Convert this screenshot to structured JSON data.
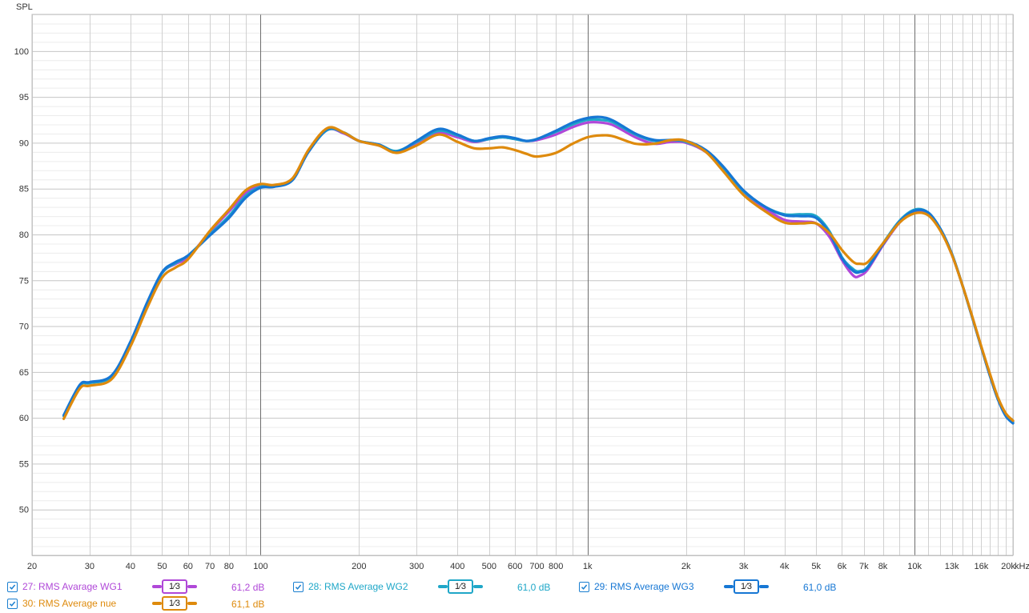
{
  "chart_data": {
    "type": "line",
    "ylabel": "SPL",
    "xunit": "kHz",
    "xscale": "log",
    "xlim": [
      20,
      20000
    ],
    "ylim": [
      45,
      104
    ],
    "grid": true,
    "yticks": [
      50,
      55,
      60,
      65,
      70,
      75,
      80,
      85,
      90,
      95,
      100
    ],
    "xticks": [
      {
        "v": 20,
        "label": "20"
      },
      {
        "v": 30,
        "label": "30"
      },
      {
        "v": 40,
        "label": "40"
      },
      {
        "v": 50,
        "label": "50"
      },
      {
        "v": 60,
        "label": "60"
      },
      {
        "v": 70,
        "label": "70"
      },
      {
        "v": 80,
        "label": "80"
      },
      {
        "v": 100,
        "label": "100"
      },
      {
        "v": 200,
        "label": "200"
      },
      {
        "v": 300,
        "label": "300"
      },
      {
        "v": 400,
        "label": "400"
      },
      {
        "v": 500,
        "label": "500"
      },
      {
        "v": 600,
        "label": "600"
      },
      {
        "v": 700,
        "label": "700"
      },
      {
        "v": 800,
        "label": "800"
      },
      {
        "v": 1000,
        "label": "1k"
      },
      {
        "v": 2000,
        "label": "2k"
      },
      {
        "v": 3000,
        "label": "3k"
      },
      {
        "v": 4000,
        "label": "4k"
      },
      {
        "v": 5000,
        "label": "5k"
      },
      {
        "v": 6000,
        "label": "6k"
      },
      {
        "v": 7000,
        "label": "7k"
      },
      {
        "v": 8000,
        "label": "8k"
      },
      {
        "v": 10000,
        "label": "10k"
      },
      {
        "v": 13000,
        "label": "13k"
      },
      {
        "v": 16000,
        "label": "16k"
      },
      {
        "v": 20000,
        "label": "20k"
      }
    ],
    "x": [
      25,
      28,
      30,
      35,
      40,
      45,
      50,
      55,
      60,
      70,
      80,
      90,
      100,
      110,
      125,
      140,
      160,
      180,
      200,
      230,
      260,
      300,
      350,
      400,
      450,
      500,
      550,
      600,
      650,
      700,
      800,
      900,
      1000,
      1100,
      1200,
      1400,
      1600,
      1800,
      2000,
      2300,
      2600,
      3000,
      3500,
      4000,
      4500,
      5000,
      5500,
      6000,
      6500,
      6800,
      7200,
      8000,
      9000,
      10000,
      11000,
      12000,
      13000,
      14000,
      15000,
      16000,
      17000,
      18000,
      19000,
      20000
    ],
    "series": [
      {
        "name": "27: RMS Avarage WG1",
        "color": "#b048d8",
        "values": [
          60.2,
          63.5,
          63.8,
          64.5,
          68.2,
          72.5,
          75.8,
          76.8,
          77.5,
          80.3,
          82.5,
          84.5,
          85.3,
          85.3,
          86.0,
          89.0,
          91.4,
          91.0,
          90.2,
          89.7,
          89.0,
          90.0,
          91.1,
          90.6,
          90.1,
          90.4,
          90.6,
          90.4,
          90.2,
          90.3,
          90.9,
          91.7,
          92.2,
          92.2,
          91.9,
          90.6,
          89.9,
          90.1,
          90.0,
          89.0,
          87.1,
          84.5,
          82.8,
          81.6,
          81.4,
          81.2,
          79.7,
          77.2,
          75.5,
          75.5,
          76.2,
          78.8,
          81.3,
          82.5,
          82.2,
          80.5,
          77.8,
          74.5,
          71.0,
          67.7,
          64.6,
          62.0,
          60.3,
          59.6
        ]
      },
      {
        "name": "28: RMS Average WG2",
        "color": "#1fa7c8",
        "values": [
          60.2,
          63.5,
          63.8,
          64.5,
          68.2,
          72.5,
          75.8,
          76.9,
          77.7,
          80.0,
          82.0,
          84.2,
          85.2,
          85.3,
          86.0,
          89.0,
          91.4,
          91.1,
          90.2,
          89.8,
          89.1,
          90.1,
          91.3,
          90.8,
          90.2,
          90.4,
          90.6,
          90.4,
          90.2,
          90.4,
          91.2,
          92.0,
          92.5,
          92.5,
          92.2,
          90.9,
          90.2,
          90.3,
          90.1,
          89.1,
          87.3,
          84.7,
          83.0,
          82.2,
          82.2,
          82.0,
          80.3,
          77.5,
          76.2,
          76.0,
          76.5,
          79.0,
          81.5,
          82.7,
          82.4,
          80.6,
          77.9,
          74.5,
          71.0,
          67.7,
          64.6,
          62.0,
          60.3,
          59.5
        ]
      },
      {
        "name": "29: RMS Average WG3",
        "color": "#1677d4",
        "values": [
          60.3,
          63.6,
          63.9,
          64.6,
          68.3,
          72.6,
          75.9,
          77.0,
          77.7,
          79.9,
          81.8,
          84.0,
          85.1,
          85.2,
          85.9,
          89.0,
          91.5,
          91.1,
          90.2,
          89.8,
          89.0,
          90.2,
          91.5,
          90.9,
          90.2,
          90.5,
          90.7,
          90.5,
          90.2,
          90.4,
          91.3,
          92.2,
          92.7,
          92.8,
          92.4,
          91.0,
          90.3,
          90.3,
          90.2,
          89.2,
          87.4,
          84.8,
          83.0,
          82.1,
          82.0,
          81.8,
          80.1,
          77.4,
          76.0,
          75.9,
          76.4,
          78.9,
          81.4,
          82.6,
          82.4,
          80.6,
          77.9,
          74.5,
          71.0,
          67.7,
          64.6,
          62.0,
          60.2,
          59.4
        ]
      },
      {
        "name": "30: RMS Average nue",
        "color": "#de8a0c",
        "values": [
          59.9,
          63.2,
          63.5,
          64.2,
          67.8,
          72.0,
          75.3,
          76.4,
          77.3,
          80.4,
          82.7,
          84.8,
          85.5,
          85.4,
          86.1,
          89.2,
          91.6,
          91.1,
          90.2,
          89.7,
          88.9,
          89.7,
          90.9,
          90.1,
          89.4,
          89.4,
          89.5,
          89.2,
          88.8,
          88.5,
          88.9,
          89.9,
          90.6,
          90.8,
          90.7,
          89.9,
          89.9,
          90.3,
          90.2,
          89.0,
          86.9,
          84.3,
          82.5,
          81.3,
          81.2,
          81.2,
          80.1,
          78.3,
          77.0,
          76.8,
          77.0,
          79.0,
          81.3,
          82.3,
          82.1,
          80.4,
          77.8,
          74.5,
          71.1,
          67.8,
          64.8,
          62.2,
          60.5,
          59.7
        ]
      }
    ]
  },
  "legend": [
    {
      "checked": true,
      "label": "27: RMS Avarage WG1",
      "smoothing": "1⁄3",
      "level": "61,2 dB",
      "color": "#b048d8"
    },
    {
      "checked": true,
      "label": "28: RMS Average WG2",
      "smoothing": "1⁄3",
      "level": "61,0 dB",
      "color": "#1fa7c8"
    },
    {
      "checked": true,
      "label": "29: RMS Average WG3",
      "smoothing": "1⁄3",
      "level": "61,0 dB",
      "color": "#1677d4"
    },
    {
      "checked": true,
      "label": "30: RMS Average nue",
      "smoothing": "1⁄3",
      "level": "61,1 dB",
      "color": "#de8a0c"
    }
  ]
}
